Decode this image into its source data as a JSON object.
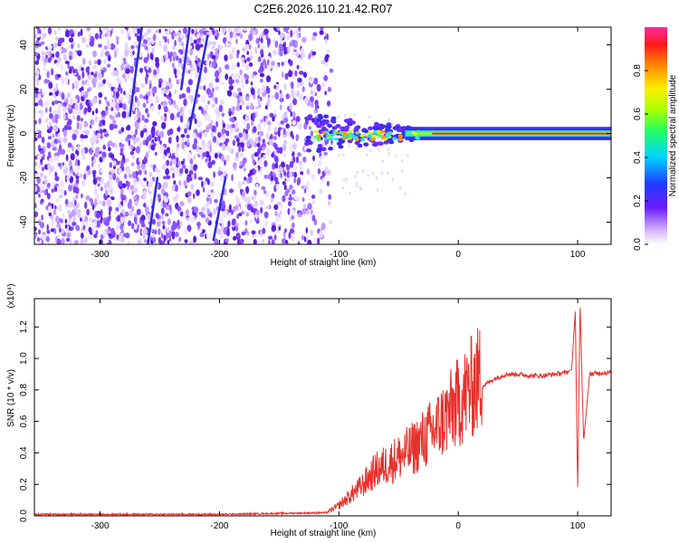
{
  "title": "C2E6.2026.110.21.42.R07",
  "colors": {
    "signal": "#e8302b",
    "axis": "#000000",
    "background": "#ffffff"
  },
  "chart_data": [
    {
      "type": "heatmap",
      "name": "spectrogram",
      "xlabel": "Height of straight line (km)",
      "ylabel": "Frequency (Hz)",
      "xlim": [
        -355,
        128
      ],
      "ylim": [
        -50,
        48
      ],
      "xticks": [
        -300,
        -200,
        -100,
        0,
        100
      ],
      "xtick_labels": [
        "-300",
        "-200",
        "-100",
        "0",
        "100"
      ],
      "yticks": [
        -40,
        -20,
        0,
        20,
        40
      ],
      "ytick_labels": [
        "-40",
        "-20",
        "0",
        "20",
        "40"
      ],
      "noise_region_x": [
        -355,
        -110
      ],
      "signal_band": {
        "x_start": -128,
        "x_end": 128,
        "center_hz": 0,
        "half_width_hz_start": 5,
        "half_width_hz_end": 3
      },
      "streaks": [
        {
          "x0": -265,
          "y0": 48,
          "x1": -275,
          "y1": 8
        },
        {
          "x0": -225,
          "y0": 48,
          "x1": -232,
          "y1": 20
        },
        {
          "x0": -210,
          "y0": 44,
          "x1": -225,
          "y1": 2
        },
        {
          "x0": -252,
          "y0": -20,
          "x1": -260,
          "y1": -50
        },
        {
          "x0": -195,
          "y0": -20,
          "x1": -205,
          "y1": -48
        }
      ],
      "colorbar": {
        "label": "Normalized spectral amplitude",
        "range": [
          0,
          1
        ],
        "ticks": [
          0.0,
          0.2,
          0.4,
          0.6,
          0.8
        ],
        "tick_labels": [
          "0.0",
          "0.2",
          "0.4",
          "0.6",
          "0.8"
        ]
      }
    },
    {
      "type": "line",
      "name": "snr",
      "xlabel": "Height of straight line (km)",
      "ylabel": "SNR (10 * v/v)",
      "scale_label": "(x10⁴)",
      "xlim": [
        -355,
        128
      ],
      "ylim": [
        0,
        1.38
      ],
      "xticks": [
        -300,
        -200,
        -100,
        0,
        100
      ],
      "xtick_labels": [
        "-300",
        "-200",
        "-100",
        "0",
        "100"
      ],
      "yticks": [
        0.0,
        0.2,
        0.4,
        0.6,
        0.8,
        1.0,
        1.2
      ],
      "ytick_labels": [
        "0.0",
        "0.2",
        "0.4",
        "0.6",
        "0.8",
        "1.0",
        "1.2"
      ],
      "series": [
        {
          "name": "SNR",
          "x": [
            -355,
            -300,
            -200,
            -110,
            -100,
            -90,
            -80,
            -70,
            -60,
            -50,
            -40,
            -30,
            -20,
            -10,
            0,
            10,
            20,
            30,
            40,
            50,
            60,
            70,
            80,
            90,
            95,
            98,
            100,
            102,
            105,
            110,
            120,
            128
          ],
          "y": [
            0.01,
            0.01,
            0.01,
            0.02,
            0.06,
            0.12,
            0.18,
            0.26,
            0.3,
            0.34,
            0.38,
            0.44,
            0.5,
            0.58,
            0.66,
            0.74,
            0.82,
            0.87,
            0.9,
            0.9,
            0.89,
            0.89,
            0.9,
            0.91,
            0.93,
            1.3,
            0.15,
            1.36,
            0.47,
            0.9,
            0.91,
            0.91
          ]
        }
      ]
    }
  ]
}
